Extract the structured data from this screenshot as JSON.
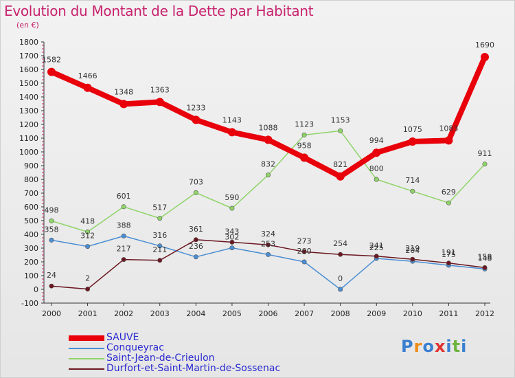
{
  "title": "Evolution du Montant de la Dette par Habitant",
  "subtitle": "(en €)",
  "logo": {
    "text": "Proxiti",
    "colors": [
      "#3a7fd0",
      "#f08c1a",
      "#3a7fd0",
      "#e03030",
      "#3a7fd0",
      "#6db33f",
      "#3a7fd0"
    ]
  },
  "chart_data": {
    "type": "line",
    "x": [
      "2000",
      "2001",
      "2002",
      "2003",
      "2004",
      "2005",
      "2006",
      "2007",
      "2008",
      "2009",
      "2010",
      "2011",
      "2012"
    ],
    "ylim": [
      -100,
      1800
    ],
    "yticks": [
      -100,
      0,
      100,
      200,
      300,
      400,
      500,
      600,
      700,
      800,
      900,
      1000,
      1100,
      1200,
      1300,
      1400,
      1500,
      1600,
      1700,
      1800
    ],
    "grid": false,
    "legend_position": "bottom-left",
    "series": [
      {
        "name": "SAUVE",
        "color": "#e8000b",
        "values": [
          1582,
          1466,
          1348,
          1363,
          1233,
          1143,
          1088,
          958,
          821,
          994,
          1075,
          1083,
          1690
        ]
      },
      {
        "name": "Conqueyrac",
        "color": "#4a8fd4",
        "values": [
          358,
          312,
          388,
          316,
          236,
          302,
          253,
          200,
          0,
          225,
          204,
          175,
          148
        ]
      },
      {
        "name": "Saint-Jean-de-Crieulon",
        "color": "#8fd468",
        "values": [
          498,
          418,
          601,
          517,
          703,
          590,
          832,
          1123,
          1153,
          800,
          714,
          629,
          911
        ]
      },
      {
        "name": "Durfort-et-Saint-Martin-de-Sossenac",
        "color": "#6b1620",
        "values": [
          24,
          2,
          217,
          211,
          361,
          343,
          324,
          273,
          254,
          241,
          219,
          191,
          158
        ]
      }
    ],
    "labels": [
      [
        "1582",
        "1466",
        "1348",
        "1363",
        "1233",
        "1143",
        "1088",
        "958",
        "821",
        "994",
        "1075",
        "1083",
        "1690"
      ],
      [
        "358",
        "312",
        "388",
        "316",
        "236",
        "302",
        "253",
        "200",
        "0",
        "225",
        "204",
        "175",
        "148"
      ],
      [
        "498",
        "418",
        "601",
        "517",
        "703",
        "590",
        "832",
        "1123",
        "1153",
        "800",
        "714",
        "629",
        "911"
      ],
      [
        "24",
        "2",
        "217",
        "211",
        "361",
        "343",
        "324",
        "273",
        "254",
        "241",
        "219",
        "191",
        "158"
      ]
    ]
  }
}
